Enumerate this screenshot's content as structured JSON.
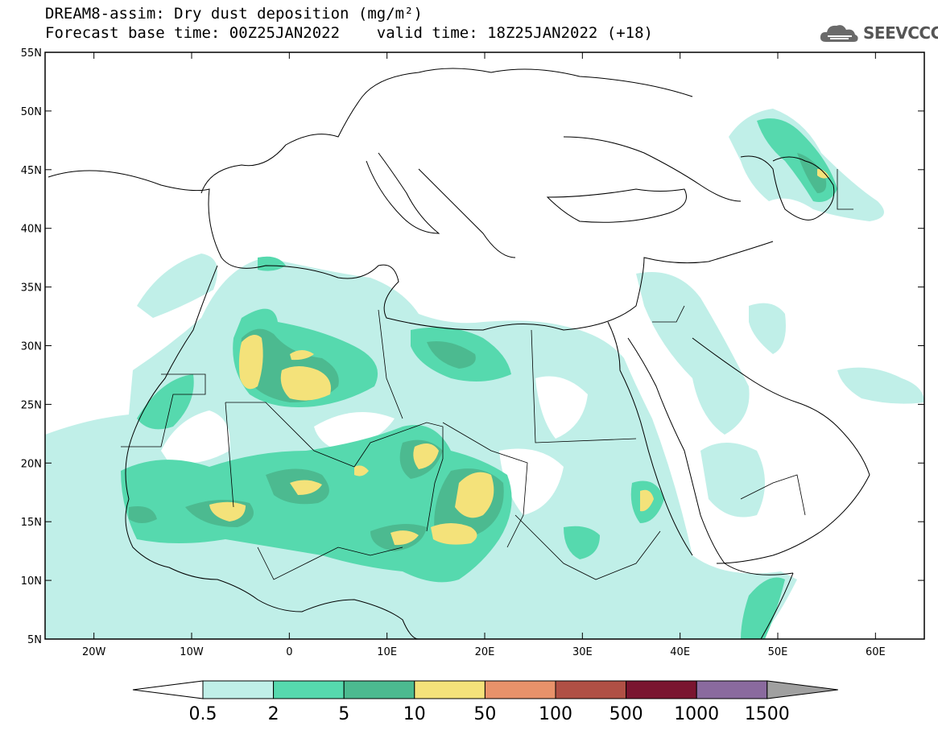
{
  "header": {
    "title_line1": "DREAM8-assim: Dry dust deposition (mg/m²)",
    "title_line2": "Forecast base time: 00Z25JAN2022    valid time: 18Z25JAN2022 (+18)",
    "logo_text": "SEEVCCC",
    "logo_icon": "cloud-icon"
  },
  "map": {
    "lon_range": [
      -25,
      65
    ],
    "lat_range": [
      5,
      55
    ],
    "lat_ticks": [
      "55N",
      "50N",
      "45N",
      "40N",
      "35N",
      "30N",
      "25N",
      "20N",
      "15N",
      "10N",
      "5N"
    ],
    "lon_ticks": [
      "20W",
      "10W",
      "0",
      "10E",
      "20E",
      "30E",
      "40E",
      "50E",
      "60E"
    ]
  },
  "colorbar": {
    "labels": [
      "0.5",
      "2",
      "5",
      "10",
      "50",
      "100",
      "500",
      "1000",
      "1500"
    ],
    "colors": [
      "#c0efe8",
      "#56d9ae",
      "#4cba90",
      "#f4e27a",
      "#e8926a",
      "#b05045",
      "#7a1530",
      "#8a6a9e"
    ],
    "under_color": "#ffffff",
    "over_color": "#a0a0a0"
  }
}
